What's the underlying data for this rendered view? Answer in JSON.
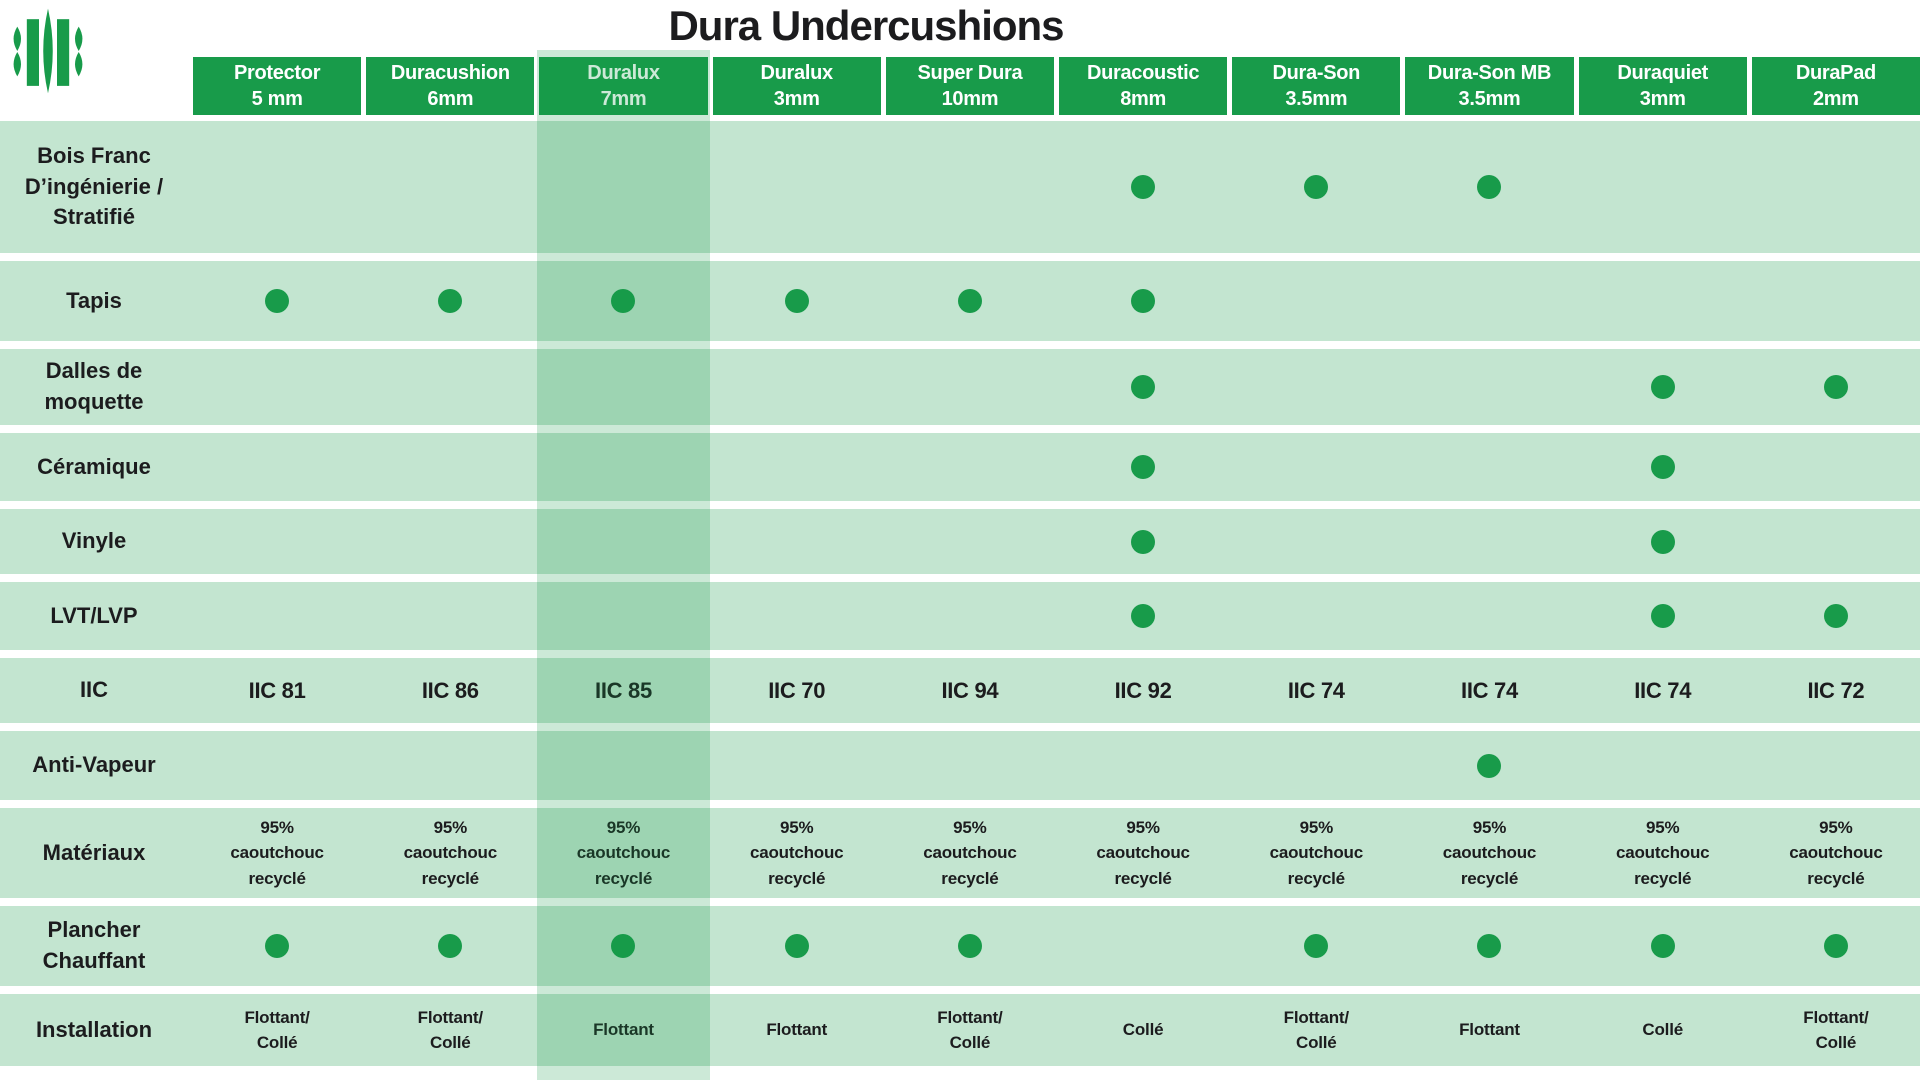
{
  "title": "Dura Undercushions",
  "colors": {
    "green": "#189B4A",
    "row_background": "#C3E5D0",
    "text": "#1C1C1E",
    "header_text": "#FFFFFF",
    "highlight_overlay": "rgba(24,155,74,0.22)"
  },
  "highlighted_column_index": 2,
  "columns": [
    {
      "name": "Protector",
      "size": "5 mm",
      "highlighted": false
    },
    {
      "name": "Duracushion",
      "size": "6mm",
      "highlighted": false
    },
    {
      "name": "Duralux",
      "size": "7mm",
      "highlighted": true
    },
    {
      "name": "Duralux",
      "size": "3mm",
      "highlighted": false
    },
    {
      "name": "Super Dura",
      "size": "10mm",
      "highlighted": false
    },
    {
      "name": "Duracoustic",
      "size": "8mm",
      "highlighted": false
    },
    {
      "name": "Dura-Son",
      "size": "3.5mm",
      "highlighted": false
    },
    {
      "name": "Dura-Son MB",
      "size": "3.5mm",
      "highlighted": false
    },
    {
      "name": "Duraquiet",
      "size": "3mm",
      "highlighted": false
    },
    {
      "name": "DuraPad",
      "size": "2mm",
      "highlighted": false
    }
  ],
  "rows": [
    {
      "label": "Bois Franc\nD’ingénierie /\nStratifié",
      "type": "dots",
      "cells": [
        false,
        false,
        false,
        false,
        false,
        true,
        true,
        true,
        false,
        false
      ]
    },
    {
      "label": "Tapis",
      "type": "dots",
      "cells": [
        true,
        true,
        true,
        true,
        true,
        true,
        false,
        false,
        false,
        false
      ]
    },
    {
      "label": "Dalles de\nmoquette",
      "type": "dots",
      "cells": [
        false,
        false,
        false,
        false,
        false,
        true,
        false,
        false,
        true,
        true
      ]
    },
    {
      "label": "Céramique",
      "type": "dots",
      "cells": [
        false,
        false,
        false,
        false,
        false,
        true,
        false,
        false,
        true,
        false
      ]
    },
    {
      "label": "Vinyle",
      "type": "dots",
      "cells": [
        false,
        false,
        false,
        false,
        false,
        true,
        false,
        false,
        true,
        false
      ]
    },
    {
      "label": "LVT/LVP",
      "type": "dots",
      "cells": [
        false,
        false,
        false,
        false,
        false,
        true,
        false,
        false,
        true,
        true
      ]
    },
    {
      "label": "IIC",
      "type": "text",
      "text_style": "large",
      "cells": [
        "IIC 81",
        "IIC 86",
        "IIC 85",
        "IIC 70",
        "IIC 94",
        "IIC 92",
        "IIC 74",
        "IIC 74",
        "IIC 74",
        "IIC 72"
      ]
    },
    {
      "label": "Anti-Vapeur",
      "type": "dots",
      "cells": [
        false,
        false,
        false,
        false,
        false,
        false,
        false,
        true,
        false,
        false
      ]
    },
    {
      "label": "Matériaux",
      "type": "text",
      "text_style": "small",
      "cells": [
        "95%\ncaoutchouc\nrecyclé",
        "95%\ncaoutchouc\nrecyclé",
        "95%\ncaoutchouc\nrecyclé",
        "95%\ncaoutchouc\nrecyclé",
        "95%\ncaoutchouc\nrecyclé",
        "95%\ncaoutchouc\nrecyclé",
        "95%\ncaoutchouc\nrecyclé",
        "95%\ncaoutchouc\nrecyclé",
        "95%\ncaoutchouc\nrecyclé",
        "95%\ncaoutchouc\nrecyclé"
      ]
    },
    {
      "label": "Plancher\nChauffant",
      "type": "dots",
      "cells": [
        true,
        true,
        true,
        true,
        true,
        false,
        true,
        true,
        true,
        true
      ]
    },
    {
      "label": "Installation",
      "type": "text",
      "text_style": "small",
      "cells": [
        "Flottant/\nCollé",
        "Flottant/\nCollé",
        "Flottant",
        "Flottant",
        "Flottant/\nCollé",
        "Collé",
        "Flottant/\nCollé",
        "Flottant",
        "Collé",
        "Flottant/\nCollé"
      ]
    }
  ]
}
